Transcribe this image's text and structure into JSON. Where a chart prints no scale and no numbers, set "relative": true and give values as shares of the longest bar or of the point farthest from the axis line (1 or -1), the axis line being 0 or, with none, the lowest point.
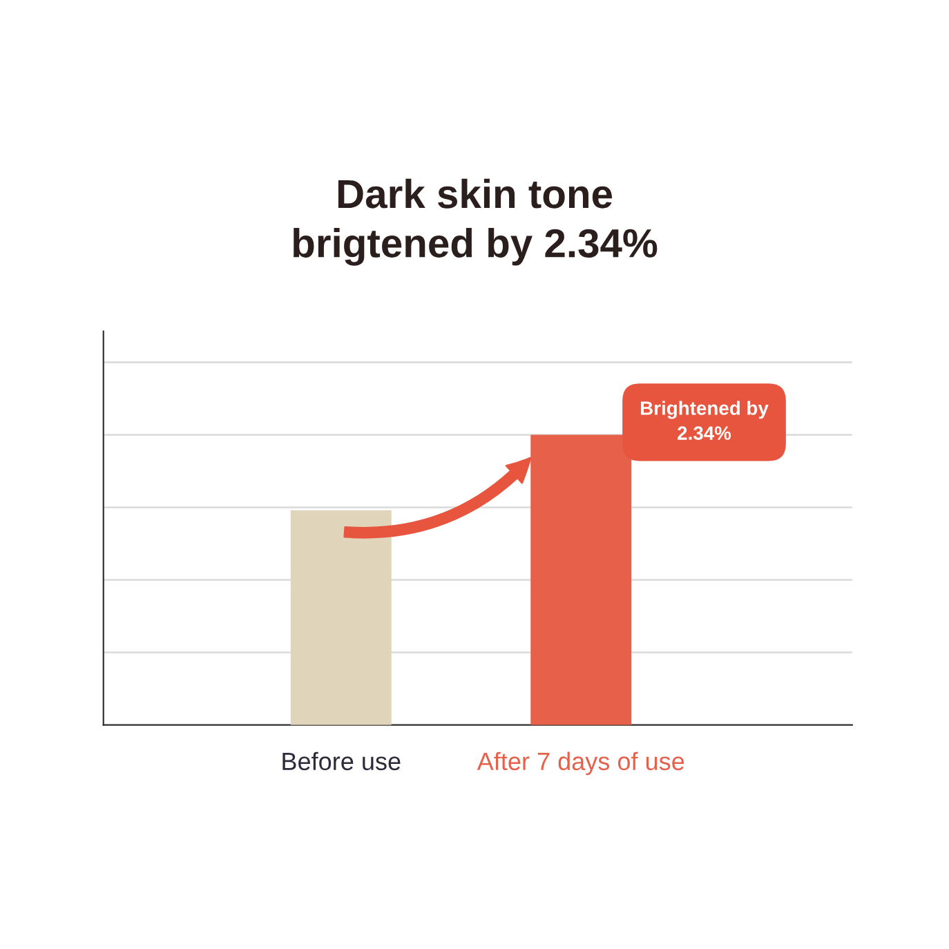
{
  "chart_data": {
    "type": "bar",
    "title": "Dark skin tone\nbrigtened by 2.34%",
    "categories": [
      "Before use",
      "After 7 days of use"
    ],
    "values": [
      0.74,
      1
    ],
    "colors": [
      "#e0d4bb",
      "#e6604a"
    ],
    "relative": true,
    "grid": "y",
    "annotations": [
      "Brightened by\n2.34%"
    ]
  }
}
